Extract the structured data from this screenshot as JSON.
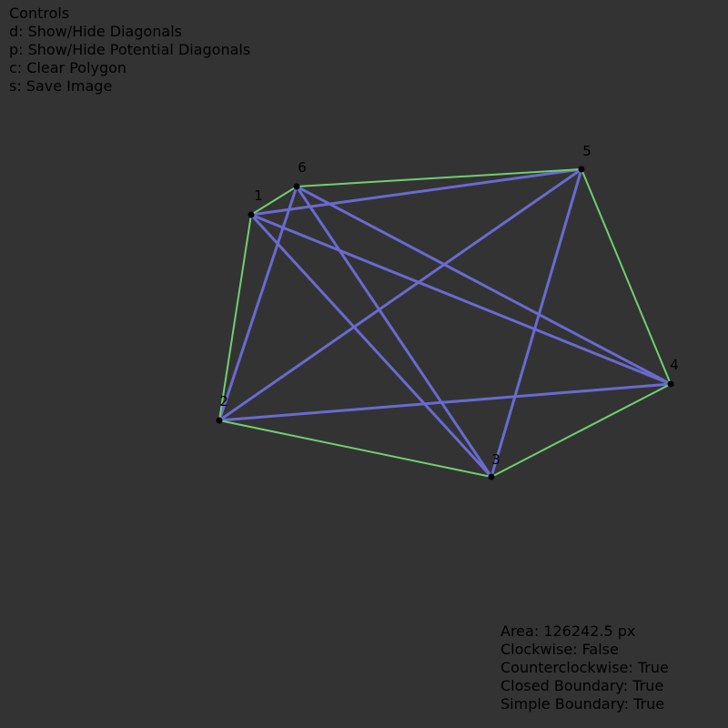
{
  "controls": {
    "title": "Controls",
    "items": [
      {
        "key": "d",
        "label": "d: Show/Hide Diagonals"
      },
      {
        "key": "p",
        "label": "p: Show/Hide Potential Diagonals"
      },
      {
        "key": "c",
        "label": "c: Clear Polygon"
      },
      {
        "key": "s",
        "label": "s: Save Image"
      }
    ]
  },
  "stats": {
    "area": "Area: 126242.5 px",
    "clockwise": "Clockwise: False",
    "counterclockwise": "Counterclockwise: True",
    "closed_boundary": "Closed Boundary: True",
    "simple_boundary": "Simple Boundary: True"
  },
  "polygon": {
    "vertex_labels": [
      "1",
      "2",
      "3",
      "4",
      "5",
      "6"
    ],
    "diagonals": [
      [
        1,
        3
      ],
      [
        1,
        4
      ],
      [
        1,
        5
      ],
      [
        2,
        4
      ],
      [
        2,
        5
      ],
      [
        2,
        6
      ],
      [
        3,
        5
      ],
      [
        3,
        6
      ],
      [
        4,
        6
      ]
    ]
  },
  "colors": {
    "background": "#333333",
    "text": "#000000",
    "edge": "#6fcf6f",
    "diagonal": "#6a6ad0",
    "vertex": "#000000"
  }
}
